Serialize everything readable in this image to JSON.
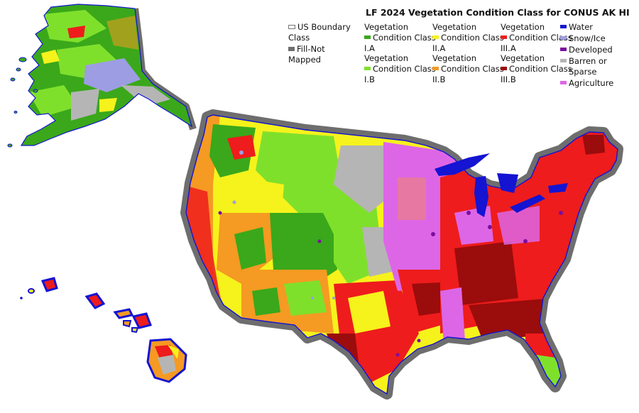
{
  "title": "LF 2024 Vegetation Condition Class for CONUS AK HI",
  "colors": {
    "vcc_ia": "#3aa81a",
    "vcc_ib": "#7fe02c",
    "vcc_iia": "#f6f21c",
    "vcc_iib": "#f59a22",
    "vcc_iiia": "#ee1c1c",
    "vcc_iiib": "#9b0c0c",
    "water": "#1414d2",
    "snow_ice": "#9d9de3",
    "developed": "#7a0f9e",
    "barren": "#b5b5b5",
    "agriculture": "#dd66e6",
    "boundary_halo": "#6e6e6e"
  },
  "legend": {
    "boundary": {
      "line1": "US Boundary",
      "line2": "Class",
      "icon": "outline-rectangle"
    },
    "fill": {
      "line1": "Fill-Not",
      "line2": "Mapped",
      "icon": "gray-bar"
    },
    "classes": [
      {
        "key": "vcc_ia",
        "line1": "Vegetation",
        "line2": "Condition Class",
        "line3": "I.A"
      },
      {
        "key": "vcc_ib",
        "line1": "Vegetation",
        "line2": "Condition Class",
        "line3": "I.B"
      },
      {
        "key": "vcc_iia",
        "line1": "Vegetation",
        "line2": "Condition Class",
        "line3": "II.A"
      },
      {
        "key": "vcc_iib",
        "line1": "Vegetation",
        "line2": "Condition Class",
        "line3": "II.B"
      },
      {
        "key": "vcc_iiia",
        "line1": "Vegetation",
        "line2": "Condition Class",
        "line3": "III.A"
      },
      {
        "key": "vcc_iiib",
        "line1": "Vegetation",
        "line2": "Condition Class",
        "line3": "III.B"
      }
    ],
    "other": [
      {
        "key": "water",
        "label": "Water"
      },
      {
        "key": "snow_ice",
        "label": "Snow/Ice"
      },
      {
        "key": "developed",
        "label": "Developed"
      },
      {
        "key": "barren",
        "line1": "Barren or",
        "line2": "Sparse"
      },
      {
        "key": "agriculture",
        "label": "Agriculture"
      }
    ]
  }
}
